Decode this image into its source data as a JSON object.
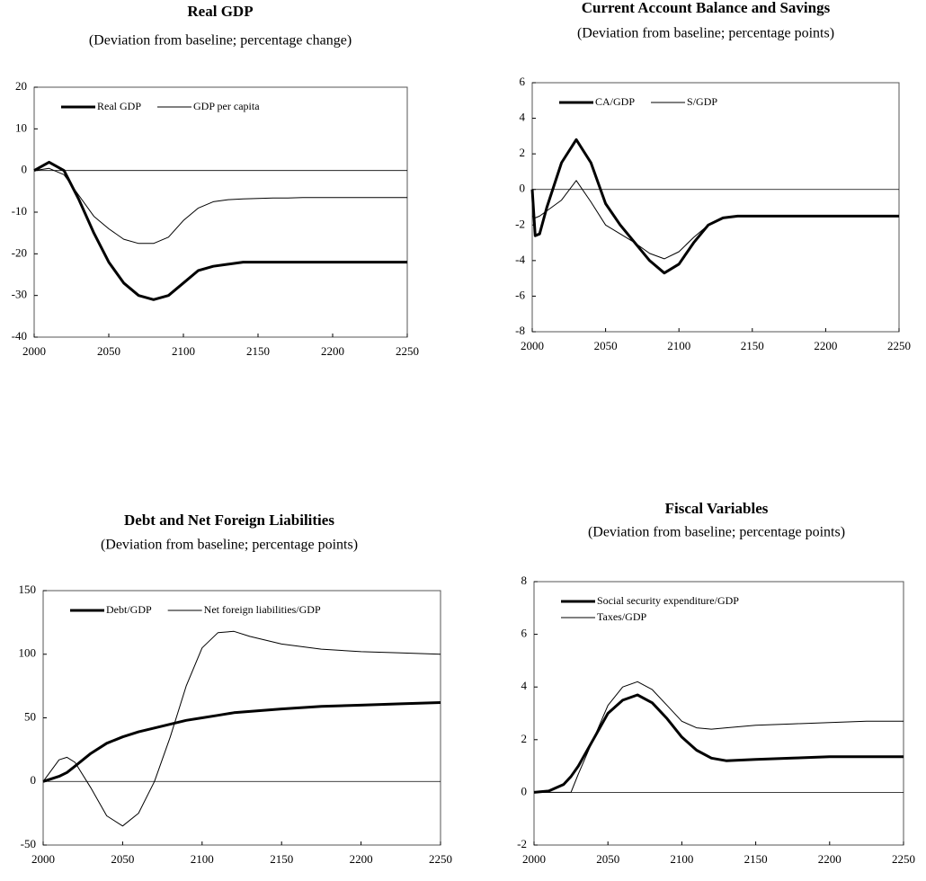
{
  "chart_data": [
    {
      "type": "line",
      "title": "Real GDP",
      "subtitle": "(Deviation from baseline; percentage change)",
      "x": [
        2000,
        2010,
        2020,
        2030,
        2040,
        2050,
        2060,
        2070,
        2080,
        2090,
        2100,
        2110,
        2120,
        2130,
        2140,
        2150,
        2160,
        2170,
        2180,
        2190,
        2200,
        2210,
        2220,
        2230,
        2240,
        2250
      ],
      "series": [
        {
          "name": "Real GDP",
          "color": "#000000",
          "width": 3,
          "values": [
            0,
            2,
            0,
            -7,
            -15,
            -22,
            -27,
            -30,
            -31,
            -30,
            -27,
            -24,
            -23,
            -22.5,
            -22,
            -22,
            -22,
            -22,
            -22,
            -22,
            -22,
            -22,
            -22,
            -22,
            -22,
            -22
          ]
        },
        {
          "name": "GDP per capita",
          "color": "#000000",
          "width": 1,
          "values": [
            0,
            0.5,
            -1,
            -6,
            -11,
            -14,
            -16.5,
            -17.5,
            -17.5,
            -16,
            -12,
            -9,
            -7.5,
            -7,
            -6.8,
            -6.7,
            -6.6,
            -6.6,
            -6.5,
            -6.5,
            -6.5,
            -6.5,
            -6.5,
            -6.5,
            -6.5,
            -6.5
          ]
        }
      ],
      "xlim": [
        2000,
        2250
      ],
      "xticks": [
        2000,
        2050,
        2100,
        2150,
        2200,
        2250
      ],
      "ylim": [
        -40,
        20
      ],
      "yticks": [
        -40,
        -30,
        -20,
        -10,
        0,
        10,
        20
      ],
      "legend": "upper left",
      "legend_orientation": "horizontal"
    },
    {
      "type": "line",
      "title": "Current Account Balance and Savings",
      "subtitle": "(Deviation from baseline; percentage points)",
      "x": [
        2000,
        2002,
        2005,
        2010,
        2020,
        2030,
        2040,
        2050,
        2060,
        2070,
        2080,
        2090,
        2100,
        2110,
        2120,
        2130,
        2140,
        2150,
        2200,
        2250
      ],
      "series": [
        {
          "name": "CA/GDP",
          "color": "#000000",
          "width": 3,
          "values": [
            0,
            -2.6,
            -2.5,
            -1,
            1.5,
            2.8,
            1.5,
            -0.8,
            -2,
            -3,
            -4,
            -4.7,
            -4.2,
            -3,
            -2,
            -1.6,
            -1.5,
            -1.5,
            -1.5,
            -1.5
          ]
        },
        {
          "name": "S/GDP",
          "color": "#000000",
          "width": 1,
          "values": [
            -1.5,
            -1.6,
            -1.5,
            -1.2,
            -0.6,
            0.5,
            -0.7,
            -2,
            -2.5,
            -3,
            -3.6,
            -3.9,
            -3.5,
            -2.7,
            -2,
            -1.6,
            -1.5,
            -1.5,
            -1.5,
            -1.5
          ]
        }
      ],
      "xlim": [
        2000,
        2250
      ],
      "xticks": [
        2000,
        2050,
        2100,
        2150,
        2200,
        2250
      ],
      "ylim": [
        -8,
        6
      ],
      "yticks": [
        -8,
        -6,
        -4,
        -2,
        0,
        2,
        4,
        6
      ],
      "legend": "upper left",
      "legend_orientation": "horizontal"
    },
    {
      "type": "line",
      "title": "Debt and Net Foreign Liabilities",
      "subtitle": "(Deviation from baseline; percentage points)",
      "x": [
        2000,
        2010,
        2015,
        2020,
        2030,
        2040,
        2050,
        2060,
        2070,
        2080,
        2090,
        2100,
        2110,
        2120,
        2130,
        2150,
        2175,
        2200,
        2225,
        2250
      ],
      "series": [
        {
          "name": "Debt/GDP",
          "color": "#000000",
          "width": 3,
          "values": [
            0,
            4,
            7,
            12,
            22,
            30,
            35,
            39,
            42,
            45,
            48,
            50,
            52,
            54,
            55,
            57,
            59,
            60,
            61,
            62
          ]
        },
        {
          "name": "Net foreign liabilities/GDP",
          "color": "#000000",
          "width": 1,
          "values": [
            0,
            17,
            19,
            15,
            -5,
            -27,
            -35,
            -25,
            0,
            35,
            75,
            105,
            117,
            118,
            114,
            108,
            104,
            102,
            101,
            100
          ]
        }
      ],
      "xlim": [
        2000,
        2250
      ],
      "xticks": [
        2000,
        2050,
        2100,
        2150,
        2200,
        2250
      ],
      "ylim": [
        -50,
        150
      ],
      "yticks": [
        -50,
        0,
        50,
        100,
        150
      ],
      "legend": "upper left",
      "legend_orientation": "horizontal"
    },
    {
      "type": "line",
      "title": "Fiscal Variables",
      "subtitle": "(Deviation from baseline; percentage points)",
      "x": [
        2000,
        2010,
        2020,
        2025,
        2030,
        2040,
        2050,
        2060,
        2070,
        2080,
        2090,
        2100,
        2110,
        2120,
        2130,
        2150,
        2175,
        2200,
        2225,
        2250
      ],
      "series": [
        {
          "name": "Social security expenditure/GDP",
          "color": "#000000",
          "width": 3,
          "values": [
            0,
            0.05,
            0.3,
            0.6,
            1.0,
            2.0,
            3.0,
            3.5,
            3.7,
            3.4,
            2.8,
            2.1,
            1.6,
            1.3,
            1.2,
            1.25,
            1.3,
            1.35,
            1.35,
            1.35
          ]
        },
        {
          "name": "Taxes/GDP",
          "color": "#000000",
          "width": 1,
          "values": [
            0,
            0,
            0,
            0,
            0.7,
            2.0,
            3.3,
            4.0,
            4.2,
            3.9,
            3.3,
            2.7,
            2.45,
            2.4,
            2.45,
            2.55,
            2.6,
            2.65,
            2.7,
            2.7
          ]
        }
      ],
      "xlim": [
        2000,
        2250
      ],
      "xticks": [
        2000,
        2050,
        2100,
        2150,
        2200,
        2250
      ],
      "ylim": [
        -2,
        8
      ],
      "yticks": [
        -2,
        0,
        2,
        4,
        6,
        8
      ],
      "legend": "upper left",
      "legend_orientation": "vertical"
    }
  ]
}
